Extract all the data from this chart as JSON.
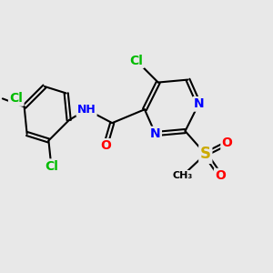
{
  "background_color": "#e8e8e8",
  "atom_colors": {
    "C": "#000000",
    "N": "#0000ff",
    "O": "#ff0000",
    "S": "#ccaa00",
    "Cl": "#00bb00",
    "H": "#0000ff"
  },
  "bond_color": "#000000",
  "figsize": [
    3.0,
    3.0
  ],
  "dpi": 100
}
